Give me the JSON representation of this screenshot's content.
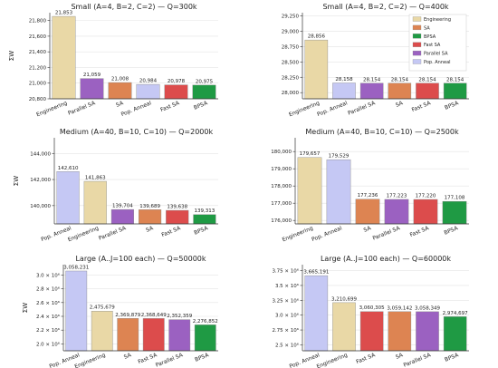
{
  "colors": {
    "Engineering": "#e9d8a6",
    "SA": "#dd8452",
    "BPSA": "#1f9a44",
    "Fast SA": "#dc4c4c",
    "Parallel SA": "#9b61c1",
    "Pop. Anneal": "#c5c8f4"
  },
  "legend": {
    "placement": "top-right of second panel",
    "entries": [
      "Engineering",
      "SA",
      "BPSA",
      "Fast SA",
      "Parallel SA",
      "Pop. Anneal"
    ]
  },
  "chart_data": [
    {
      "type": "bar",
      "title": "Small (A=4, B=2, C=2) — Q=300k",
      "ylabel": "ΣW",
      "ylim": [
        20800,
        21900
      ],
      "yticks": [
        20800,
        21000,
        21200,
        21400,
        21600,
        21800
      ],
      "ytick_labels": [
        "20,800",
        "21,000",
        "21,200",
        "21,400",
        "21,600",
        "21,800"
      ],
      "categories": [
        "Engineering",
        "Parallel SA",
        "SA",
        "Pop. Anneal",
        "Fast SA",
        "BPSA"
      ],
      "values": [
        21853,
        21059,
        21008,
        20984,
        20978,
        20975
      ],
      "value_labels": [
        "21,853",
        "21,059",
        "21,008",
        "20,984",
        "20,978",
        "20,975"
      ]
    },
    {
      "type": "bar",
      "title": "Small (A=4, B=2, C=2) — Q=400k",
      "ylabel": "",
      "ylim": [
        27900,
        29300
      ],
      "yticks": [
        28000,
        28250,
        28500,
        28750,
        29000,
        29250
      ],
      "ytick_labels": [
        "28,000",
        "28,250",
        "28,500",
        "28,750",
        "29,000",
        "29,250"
      ],
      "categories": [
        "Engineering",
        "Pop. Anneal",
        "Parallel SA",
        "SA",
        "Fast SA",
        "BPSA"
      ],
      "values": [
        28856,
        28158,
        28154,
        28154,
        28154,
        28154
      ],
      "value_labels": [
        "28,856",
        "28,158",
        "28,154",
        "28,154",
        "28,154",
        "28,154"
      ]
    },
    {
      "type": "bar",
      "title": "Medium (A=40, B=10, C=10) — Q=2000k",
      "ylabel": "ΣW",
      "ylim": [
        138600,
        145200
      ],
      "yticks": [
        140000,
        142000,
        144000
      ],
      "ytick_labels": [
        "140,000",
        "142,000",
        "144,000"
      ],
      "categories": [
        "Pop. Anneal",
        "Engineering",
        "Parallel SA",
        "SA",
        "Fast SA",
        "BPSA"
      ],
      "values": [
        142610,
        141863,
        139704,
        139689,
        139638,
        139313
      ],
      "value_labels": [
        "142,610",
        "141,863",
        "139,704",
        "139,689",
        "139,638",
        "139,313"
      ]
    },
    {
      "type": "bar",
      "title": "Medium (A=40, B=10, C=10) — Q=2500k",
      "ylabel": "",
      "ylim": [
        175800,
        180800
      ],
      "yticks": [
        176000,
        177000,
        178000,
        179000,
        180000
      ],
      "ytick_labels": [
        "176,000",
        "177,000",
        "178,000",
        "179,000",
        "180,000"
      ],
      "categories": [
        "Engineering",
        "Pop. Anneal",
        "SA",
        "Parallel SA",
        "Fast SA",
        "BPSA"
      ],
      "values": [
        179657,
        179529,
        177236,
        177223,
        177220,
        177108
      ],
      "value_labels": [
        "179,657",
        "179,529",
        "177,236",
        "177,223",
        "177,220",
        "177,108"
      ]
    },
    {
      "type": "bar",
      "title": "Large (A..J=100 each) — Q=50000k",
      "ylabel": "ΣW",
      "ylim": [
        1900000,
        3150000
      ],
      "yticks": [
        2000000,
        2200000,
        2400000,
        2600000,
        2800000,
        3000000
      ],
      "ytick_labels": [
        "2.0 × 10⁶",
        "2.2 × 10⁶",
        "2.4 × 10⁶",
        "2.6 × 10⁶",
        "2.8 × 10⁶",
        "3.0 × 10⁶"
      ],
      "categories": [
        "Pop. Anneal",
        "Engineering",
        "SA",
        "Fast SA",
        "Parallel SA",
        "BPSA"
      ],
      "values": [
        3058231,
        2475679,
        2369879,
        2368649,
        2352359,
        2276852
      ],
      "value_labels": [
        "3,058,231",
        "2,475,679",
        "2,369,879",
        "2,368,649",
        "2,352,359",
        "2,276,852"
      ]
    },
    {
      "type": "bar",
      "title": "Large (A..J=100 each) — Q=60000k",
      "ylabel": "",
      "ylim": [
        2400000,
        3850000
      ],
      "yticks": [
        2500000,
        2750000,
        3000000,
        3250000,
        3500000,
        3750000
      ],
      "ytick_labels": [
        "2.5 × 10⁶",
        "2.75 × 10⁶",
        "3.0 × 10⁶",
        "3.25 × 10⁶",
        "3.5 × 10⁶",
        "3.75 × 10⁶"
      ],
      "categories": [
        "Pop. Anneal",
        "Engineering",
        "Fast SA",
        "SA",
        "Parallel SA",
        "BPSA"
      ],
      "values": [
        3665191,
        3210699,
        3060305,
        3059142,
        3058349,
        2974697
      ],
      "value_labels": [
        "3,665,191",
        "3,210,699",
        "3,060,305",
        "3,059,142",
        "3,058,349",
        "2,974,697"
      ]
    }
  ]
}
